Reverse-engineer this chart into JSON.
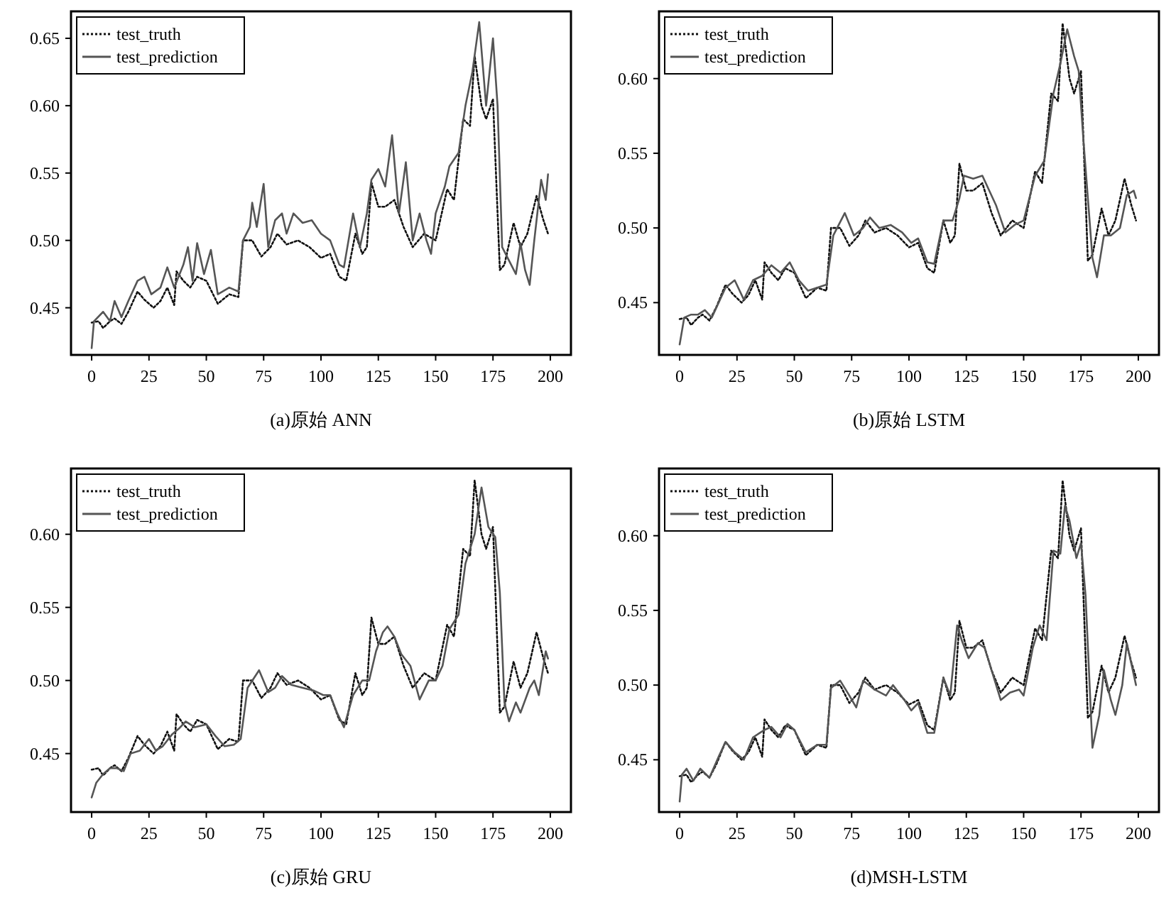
{
  "chart_data": [
    {
      "type": "line",
      "title": "(a)原始 ANN",
      "xlim": [
        -9,
        209
      ],
      "ylim": [
        0.415,
        0.67
      ],
      "xticks": [
        0,
        25,
        50,
        75,
        100,
        125,
        150,
        175,
        200
      ],
      "yticks": [
        {
          "value": 0.45,
          "label": "0.45"
        },
        {
          "value": 0.5,
          "label": "0.50"
        },
        {
          "value": 0.55,
          "label": "0.55"
        },
        {
          "value": 0.6,
          "label": "0.60"
        },
        {
          "value": 0.65,
          "label": "0.65"
        }
      ],
      "legend": "top left",
      "grid": false,
      "series": [
        {
          "name": "test_truth",
          "color": "#111111",
          "line_style": "dotted",
          "x": [
            0,
            3,
            5,
            8,
            10,
            13,
            16,
            20,
            23,
            27,
            30,
            33,
            36,
            37,
            40,
            43,
            46,
            50,
            55,
            60,
            64,
            66,
            70,
            74,
            78,
            81,
            85,
            90,
            95,
            100,
            104,
            108,
            111,
            115,
            118,
            120,
            122,
            125,
            128,
            132,
            136,
            140,
            145,
            150,
            155,
            158,
            162,
            165,
            167,
            170,
            172,
            175,
            178,
            180,
            184,
            187,
            190,
            194,
            197,
            199
          ],
          "values": [
            0.439,
            0.44,
            0.435,
            0.44,
            0.442,
            0.438,
            0.447,
            0.462,
            0.456,
            0.45,
            0.455,
            0.465,
            0.452,
            0.477,
            0.47,
            0.465,
            0.473,
            0.47,
            0.453,
            0.46,
            0.458,
            0.5,
            0.5,
            0.488,
            0.495,
            0.505,
            0.497,
            0.5,
            0.495,
            0.487,
            0.49,
            0.473,
            0.47,
            0.505,
            0.49,
            0.495,
            0.543,
            0.525,
            0.525,
            0.53,
            0.51,
            0.495,
            0.505,
            0.5,
            0.538,
            0.53,
            0.59,
            0.585,
            0.637,
            0.6,
            0.59,
            0.605,
            0.478,
            0.482,
            0.513,
            0.495,
            0.505,
            0.533,
            0.515,
            0.505
          ]
        },
        {
          "name": "test_prediction",
          "color": "#555555",
          "line_style": "solid",
          "x": [
            0,
            1,
            5,
            8,
            10,
            13,
            16,
            20,
            23,
            26,
            30,
            33,
            36,
            40,
            42,
            44,
            46,
            49,
            52,
            55,
            60,
            64,
            66,
            69,
            70,
            72,
            75,
            77,
            80,
            83,
            85,
            88,
            92,
            96,
            100,
            104,
            108,
            110,
            114,
            117,
            120,
            122,
            125,
            128,
            131,
            134,
            137,
            140,
            143,
            146,
            148,
            150,
            154,
            156,
            160,
            163,
            166,
            169,
            172,
            175,
            177,
            179,
            182,
            185,
            187,
            189,
            191,
            193,
            196,
            198,
            199
          ],
          "values": [
            0.42,
            0.44,
            0.447,
            0.44,
            0.455,
            0.443,
            0.455,
            0.47,
            0.473,
            0.46,
            0.465,
            0.48,
            0.465,
            0.482,
            0.495,
            0.47,
            0.498,
            0.475,
            0.493,
            0.46,
            0.465,
            0.462,
            0.5,
            0.51,
            0.528,
            0.51,
            0.542,
            0.495,
            0.515,
            0.52,
            0.505,
            0.52,
            0.513,
            0.515,
            0.505,
            0.5,
            0.482,
            0.48,
            0.52,
            0.495,
            0.52,
            0.545,
            0.553,
            0.54,
            0.578,
            0.52,
            0.558,
            0.5,
            0.52,
            0.5,
            0.49,
            0.52,
            0.54,
            0.555,
            0.565,
            0.6,
            0.625,
            0.662,
            0.6,
            0.65,
            0.6,
            0.495,
            0.485,
            0.475,
            0.498,
            0.478,
            0.467,
            0.5,
            0.545,
            0.53,
            0.549
          ]
        }
      ]
    },
    {
      "type": "line",
      "title": "(b)原始 LSTM",
      "xlim": [
        -9,
        209
      ],
      "ylim": [
        0.415,
        0.645
      ],
      "xticks": [
        0,
        25,
        50,
        75,
        100,
        125,
        150,
        175,
        200
      ],
      "yticks": [
        {
          "value": 0.45,
          "label": "0.45"
        },
        {
          "value": 0.5,
          "label": "0.50"
        },
        {
          "value": 0.55,
          "label": "0.55"
        },
        {
          "value": 0.6,
          "label": "0.60"
        }
      ],
      "legend": "top left",
      "grid": false,
      "series": [
        {
          "name": "test_truth",
          "color": "#111111",
          "line_style": "dotted",
          "x": [
            0,
            3,
            5,
            8,
            10,
            13,
            16,
            20,
            23,
            27,
            30,
            33,
            36,
            37,
            40,
            43,
            46,
            50,
            55,
            60,
            64,
            66,
            70,
            74,
            78,
            81,
            85,
            90,
            95,
            100,
            104,
            108,
            111,
            115,
            118,
            120,
            122,
            125,
            128,
            132,
            136,
            140,
            145,
            150,
            155,
            158,
            162,
            165,
            167,
            170,
            172,
            175,
            178,
            180,
            184,
            187,
            190,
            194,
            197,
            199
          ],
          "values": [
            0.439,
            0.44,
            0.435,
            0.44,
            0.442,
            0.438,
            0.447,
            0.462,
            0.456,
            0.45,
            0.455,
            0.465,
            0.452,
            0.477,
            0.47,
            0.465,
            0.473,
            0.47,
            0.453,
            0.46,
            0.458,
            0.5,
            0.5,
            0.488,
            0.495,
            0.505,
            0.497,
            0.5,
            0.495,
            0.487,
            0.49,
            0.473,
            0.47,
            0.505,
            0.49,
            0.495,
            0.543,
            0.525,
            0.525,
            0.53,
            0.51,
            0.495,
            0.505,
            0.5,
            0.538,
            0.53,
            0.59,
            0.585,
            0.637,
            0.6,
            0.59,
            0.605,
            0.478,
            0.482,
            0.513,
            0.495,
            0.505,
            0.533,
            0.515,
            0.505
          ]
        },
        {
          "name": "test_prediction",
          "color": "#555555",
          "line_style": "solid",
          "x": [
            0,
            2,
            5,
            8,
            11,
            14,
            17,
            20,
            24,
            28,
            32,
            36,
            40,
            44,
            48,
            52,
            56,
            60,
            64,
            67,
            72,
            76,
            80,
            83,
            87,
            92,
            97,
            101,
            104,
            108,
            111,
            115,
            119,
            122,
            124,
            128,
            132,
            135,
            138,
            142,
            146,
            150,
            155,
            159,
            163,
            166,
            169,
            172,
            174,
            176,
            178,
            180,
            182,
            185,
            188,
            192,
            195,
            198,
            199
          ],
          "values": [
            0.422,
            0.44,
            0.442,
            0.442,
            0.445,
            0.44,
            0.45,
            0.46,
            0.465,
            0.452,
            0.465,
            0.468,
            0.475,
            0.47,
            0.477,
            0.465,
            0.458,
            0.46,
            0.462,
            0.495,
            0.51,
            0.495,
            0.5,
            0.507,
            0.5,
            0.502,
            0.497,
            0.49,
            0.493,
            0.477,
            0.476,
            0.505,
            0.505,
            0.52,
            0.535,
            0.533,
            0.535,
            0.525,
            0.515,
            0.497,
            0.502,
            0.505,
            0.535,
            0.545,
            0.59,
            0.61,
            0.633,
            0.615,
            0.605,
            0.56,
            0.52,
            0.48,
            0.467,
            0.495,
            0.495,
            0.5,
            0.522,
            0.525,
            0.52
          ]
        }
      ]
    },
    {
      "type": "line",
      "title": "(c)原始 GRU",
      "xlim": [
        -9,
        209
      ],
      "ylim": [
        0.41,
        0.645
      ],
      "xticks": [
        0,
        25,
        50,
        75,
        100,
        125,
        150,
        175,
        200
      ],
      "yticks": [
        {
          "value": 0.45,
          "label": "0.45"
        },
        {
          "value": 0.5,
          "label": "0.50"
        },
        {
          "value": 0.55,
          "label": "0.55"
        },
        {
          "value": 0.6,
          "label": "0.60"
        }
      ],
      "legend": "top left",
      "grid": false,
      "series": [
        {
          "name": "test_truth",
          "color": "#111111",
          "line_style": "dotted",
          "x": [
            0,
            3,
            5,
            8,
            10,
            13,
            16,
            20,
            23,
            27,
            30,
            33,
            36,
            37,
            40,
            43,
            46,
            50,
            55,
            60,
            64,
            66,
            70,
            74,
            78,
            81,
            85,
            90,
            95,
            100,
            104,
            108,
            111,
            115,
            118,
            120,
            122,
            125,
            128,
            132,
            136,
            140,
            145,
            150,
            155,
            158,
            162,
            165,
            167,
            170,
            172,
            175,
            178,
            180,
            184,
            187,
            190,
            194,
            197,
            199
          ],
          "values": [
            0.439,
            0.44,
            0.435,
            0.44,
            0.442,
            0.438,
            0.447,
            0.462,
            0.456,
            0.45,
            0.455,
            0.465,
            0.452,
            0.477,
            0.47,
            0.465,
            0.473,
            0.47,
            0.453,
            0.46,
            0.458,
            0.5,
            0.5,
            0.488,
            0.495,
            0.505,
            0.497,
            0.5,
            0.495,
            0.487,
            0.49,
            0.473,
            0.47,
            0.505,
            0.49,
            0.495,
            0.543,
            0.525,
            0.525,
            0.53,
            0.51,
            0.495,
            0.505,
            0.5,
            0.538,
            0.53,
            0.59,
            0.585,
            0.637,
            0.6,
            0.59,
            0.605,
            0.478,
            0.482,
            0.513,
            0.495,
            0.505,
            0.533,
            0.515,
            0.505
          ]
        },
        {
          "name": "test_prediction",
          "color": "#555555",
          "line_style": "solid",
          "x": [
            0,
            2,
            5,
            8,
            11,
            14,
            17,
            21,
            25,
            28,
            31,
            35,
            38,
            41,
            45,
            50,
            54,
            58,
            62,
            65,
            68,
            73,
            77,
            80,
            83,
            87,
            92,
            97,
            101,
            104,
            107,
            110,
            114,
            118,
            121,
            124,
            127,
            129,
            132,
            135,
            139,
            143,
            147,
            150,
            153,
            156,
            160,
            163,
            167,
            170,
            173,
            176,
            178,
            180,
            182,
            185,
            187,
            191,
            193,
            195,
            198,
            199
          ],
          "values": [
            0.42,
            0.43,
            0.436,
            0.44,
            0.44,
            0.438,
            0.45,
            0.452,
            0.46,
            0.452,
            0.455,
            0.463,
            0.467,
            0.472,
            0.468,
            0.47,
            0.462,
            0.455,
            0.456,
            0.46,
            0.495,
            0.507,
            0.492,
            0.495,
            0.503,
            0.497,
            0.495,
            0.493,
            0.49,
            0.49,
            0.478,
            0.468,
            0.49,
            0.5,
            0.5,
            0.52,
            0.533,
            0.537,
            0.53,
            0.518,
            0.51,
            0.487,
            0.5,
            0.5,
            0.51,
            0.535,
            0.545,
            0.58,
            0.6,
            0.632,
            0.605,
            0.598,
            0.56,
            0.485,
            0.472,
            0.485,
            0.478,
            0.495,
            0.5,
            0.49,
            0.52,
            0.515
          ]
        }
      ]
    },
    {
      "type": "line",
      "title": "(d)MSH-LSTM",
      "xlim": [
        -9,
        209
      ],
      "ylim": [
        0.415,
        0.645
      ],
      "xticks": [
        0,
        25,
        50,
        75,
        100,
        125,
        150,
        175,
        200
      ],
      "yticks": [
        {
          "value": 0.45,
          "label": "0.45"
        },
        {
          "value": 0.5,
          "label": "0.50"
        },
        {
          "value": 0.55,
          "label": "0.55"
        },
        {
          "value": 0.6,
          "label": "0.60"
        }
      ],
      "legend": "top left",
      "grid": false,
      "series": [
        {
          "name": "test_truth",
          "color": "#111111",
          "line_style": "dotted",
          "x": [
            0,
            3,
            5,
            8,
            10,
            13,
            16,
            20,
            23,
            27,
            30,
            33,
            36,
            37,
            40,
            43,
            46,
            50,
            55,
            60,
            64,
            66,
            70,
            74,
            78,
            81,
            85,
            90,
            95,
            100,
            104,
            108,
            111,
            115,
            118,
            120,
            122,
            125,
            128,
            132,
            136,
            140,
            145,
            150,
            155,
            158,
            162,
            165,
            167,
            170,
            172,
            175,
            178,
            180,
            184,
            187,
            190,
            194,
            197,
            199
          ],
          "values": [
            0.439,
            0.44,
            0.435,
            0.44,
            0.442,
            0.438,
            0.447,
            0.462,
            0.456,
            0.45,
            0.455,
            0.465,
            0.452,
            0.477,
            0.47,
            0.465,
            0.473,
            0.47,
            0.453,
            0.46,
            0.458,
            0.5,
            0.5,
            0.488,
            0.495,
            0.505,
            0.497,
            0.5,
            0.495,
            0.487,
            0.49,
            0.473,
            0.47,
            0.505,
            0.49,
            0.495,
            0.543,
            0.525,
            0.525,
            0.53,
            0.51,
            0.495,
            0.505,
            0.5,
            0.538,
            0.53,
            0.59,
            0.585,
            0.637,
            0.6,
            0.59,
            0.605,
            0.478,
            0.482,
            0.513,
            0.495,
            0.505,
            0.533,
            0.515,
            0.505
          ]
        },
        {
          "name": "test_prediction",
          "color": "#555555",
          "line_style": "solid",
          "x": [
            0,
            1,
            3,
            6,
            9,
            13,
            17,
            20,
            24,
            28,
            32,
            35,
            37,
            40,
            44,
            47,
            50,
            55,
            60,
            64,
            66,
            70,
            74,
            77,
            80,
            85,
            90,
            93,
            98,
            101,
            104,
            108,
            111,
            115,
            118,
            121,
            123,
            126,
            130,
            133,
            136,
            140,
            144,
            148,
            150,
            154,
            157,
            160,
            163,
            166,
            168,
            170,
            173,
            175,
            177,
            180,
            183,
            185,
            188,
            190,
            193,
            195,
            199
          ],
          "values": [
            0.422,
            0.44,
            0.444,
            0.436,
            0.444,
            0.438,
            0.452,
            0.462,
            0.455,
            0.45,
            0.465,
            0.468,
            0.47,
            0.472,
            0.465,
            0.474,
            0.47,
            0.455,
            0.46,
            0.46,
            0.498,
            0.503,
            0.493,
            0.485,
            0.503,
            0.497,
            0.493,
            0.5,
            0.49,
            0.483,
            0.488,
            0.468,
            0.468,
            0.505,
            0.493,
            0.54,
            0.53,
            0.518,
            0.528,
            0.525,
            0.51,
            0.49,
            0.495,
            0.497,
            0.493,
            0.525,
            0.54,
            0.53,
            0.59,
            0.588,
            0.62,
            0.61,
            0.585,
            0.595,
            0.56,
            0.458,
            0.48,
            0.51,
            0.49,
            0.48,
            0.5,
            0.528,
            0.5
          ]
        }
      ]
    }
  ]
}
